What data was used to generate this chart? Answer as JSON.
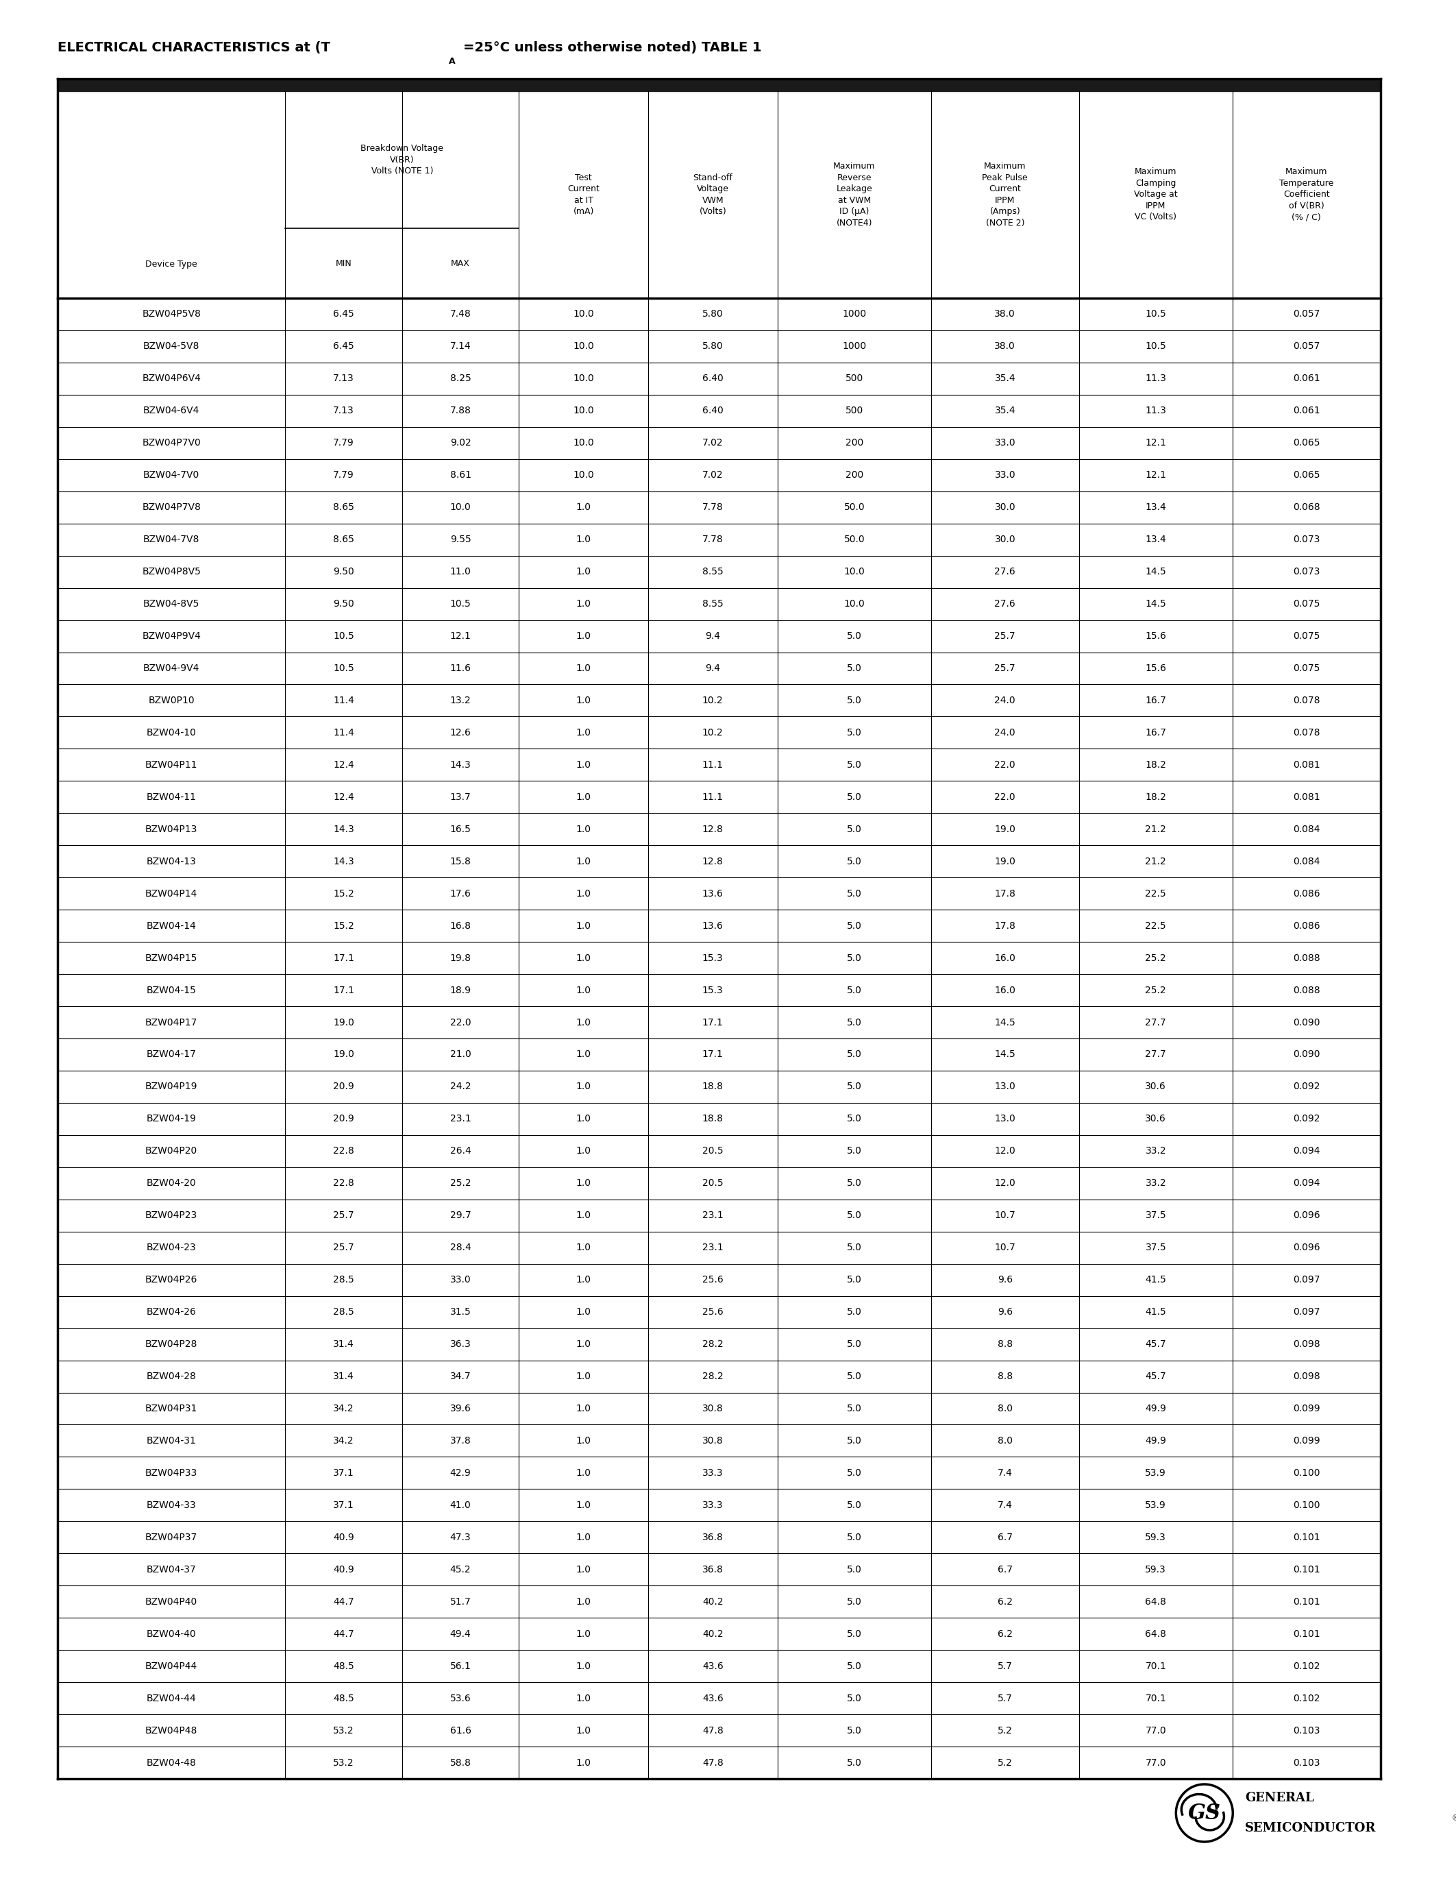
{
  "rows": [
    [
      "BZW04P5V8",
      "6.45",
      "7.48",
      "10.0",
      "5.80",
      "1000",
      "38.0",
      "10.5",
      "0.057"
    ],
    [
      "BZW04-5V8",
      "6.45",
      "7.14",
      "10.0",
      "5.80",
      "1000",
      "38.0",
      "10.5",
      "0.057"
    ],
    [
      "BZW04P6V4",
      "7.13",
      "8.25",
      "10.0",
      "6.40",
      "500",
      "35.4",
      "11.3",
      "0.061"
    ],
    [
      "BZW04-6V4",
      "7.13",
      "7.88",
      "10.0",
      "6.40",
      "500",
      "35.4",
      "11.3",
      "0.061"
    ],
    [
      "BZW04P7V0",
      "7.79",
      "9.02",
      "10.0",
      "7.02",
      "200",
      "33.0",
      "12.1",
      "0.065"
    ],
    [
      "BZW04-7V0",
      "7.79",
      "8.61",
      "10.0",
      "7.02",
      "200",
      "33.0",
      "12.1",
      "0.065"
    ],
    [
      "BZW04P7V8",
      "8.65",
      "10.0",
      "1.0",
      "7.78",
      "50.0",
      "30.0",
      "13.4",
      "0.068"
    ],
    [
      "BZW04-7V8",
      "8.65",
      "9.55",
      "1.0",
      "7.78",
      "50.0",
      "30.0",
      "13.4",
      "0.073"
    ],
    [
      "BZW04P8V5",
      "9.50",
      "11.0",
      "1.0",
      "8.55",
      "10.0",
      "27.6",
      "14.5",
      "0.073"
    ],
    [
      "BZW04-8V5",
      "9.50",
      "10.5",
      "1.0",
      "8.55",
      "10.0",
      "27.6",
      "14.5",
      "0.075"
    ],
    [
      "BZW04P9V4",
      "10.5",
      "12.1",
      "1.0",
      "9.4",
      "5.0",
      "25.7",
      "15.6",
      "0.075"
    ],
    [
      "BZW04-9V4",
      "10.5",
      "11.6",
      "1.0",
      "9.4",
      "5.0",
      "25.7",
      "15.6",
      "0.075"
    ],
    [
      "BZW0P10",
      "11.4",
      "13.2",
      "1.0",
      "10.2",
      "5.0",
      "24.0",
      "16.7",
      "0.078"
    ],
    [
      "BZW04-10",
      "11.4",
      "12.6",
      "1.0",
      "10.2",
      "5.0",
      "24.0",
      "16.7",
      "0.078"
    ],
    [
      "BZW04P11",
      "12.4",
      "14.3",
      "1.0",
      "11.1",
      "5.0",
      "22.0",
      "18.2",
      "0.081"
    ],
    [
      "BZW04-11",
      "12.4",
      "13.7",
      "1.0",
      "11.1",
      "5.0",
      "22.0",
      "18.2",
      "0.081"
    ],
    [
      "BZW04P13",
      "14.3",
      "16.5",
      "1.0",
      "12.8",
      "5.0",
      "19.0",
      "21.2",
      "0.084"
    ],
    [
      "BZW04-13",
      "14.3",
      "15.8",
      "1.0",
      "12.8",
      "5.0",
      "19.0",
      "21.2",
      "0.084"
    ],
    [
      "BZW04P14",
      "15.2",
      "17.6",
      "1.0",
      "13.6",
      "5.0",
      "17.8",
      "22.5",
      "0.086"
    ],
    [
      "BZW04-14",
      "15.2",
      "16.8",
      "1.0",
      "13.6",
      "5.0",
      "17.8",
      "22.5",
      "0.086"
    ],
    [
      "BZW04P15",
      "17.1",
      "19.8",
      "1.0",
      "15.3",
      "5.0",
      "16.0",
      "25.2",
      "0.088"
    ],
    [
      "BZW04-15",
      "17.1",
      "18.9",
      "1.0",
      "15.3",
      "5.0",
      "16.0",
      "25.2",
      "0.088"
    ],
    [
      "BZW04P17",
      "19.0",
      "22.0",
      "1.0",
      "17.1",
      "5.0",
      "14.5",
      "27.7",
      "0.090"
    ],
    [
      "BZW04-17",
      "19.0",
      "21.0",
      "1.0",
      "17.1",
      "5.0",
      "14.5",
      "27.7",
      "0.090"
    ],
    [
      "BZW04P19",
      "20.9",
      "24.2",
      "1.0",
      "18.8",
      "5.0",
      "13.0",
      "30.6",
      "0.092"
    ],
    [
      "BZW04-19",
      "20.9",
      "23.1",
      "1.0",
      "18.8",
      "5.0",
      "13.0",
      "30.6",
      "0.092"
    ],
    [
      "BZW04P20",
      "22.8",
      "26.4",
      "1.0",
      "20.5",
      "5.0",
      "12.0",
      "33.2",
      "0.094"
    ],
    [
      "BZW04-20",
      "22.8",
      "25.2",
      "1.0",
      "20.5",
      "5.0",
      "12.0",
      "33.2",
      "0.094"
    ],
    [
      "BZW04P23",
      "25.7",
      "29.7",
      "1.0",
      "23.1",
      "5.0",
      "10.7",
      "37.5",
      "0.096"
    ],
    [
      "BZW04-23",
      "25.7",
      "28.4",
      "1.0",
      "23.1",
      "5.0",
      "10.7",
      "37.5",
      "0.096"
    ],
    [
      "BZW04P26",
      "28.5",
      "33.0",
      "1.0",
      "25.6",
      "5.0",
      "9.6",
      "41.5",
      "0.097"
    ],
    [
      "BZW04-26",
      "28.5",
      "31.5",
      "1.0",
      "25.6",
      "5.0",
      "9.6",
      "41.5",
      "0.097"
    ],
    [
      "BZW04P28",
      "31.4",
      "36.3",
      "1.0",
      "28.2",
      "5.0",
      "8.8",
      "45.7",
      "0.098"
    ],
    [
      "BZW04-28",
      "31.4",
      "34.7",
      "1.0",
      "28.2",
      "5.0",
      "8.8",
      "45.7",
      "0.098"
    ],
    [
      "BZW04P31",
      "34.2",
      "39.6",
      "1.0",
      "30.8",
      "5.0",
      "8.0",
      "49.9",
      "0.099"
    ],
    [
      "BZW04-31",
      "34.2",
      "37.8",
      "1.0",
      "30.8",
      "5.0",
      "8.0",
      "49.9",
      "0.099"
    ],
    [
      "BZW04P33",
      "37.1",
      "42.9",
      "1.0",
      "33.3",
      "5.0",
      "7.4",
      "53.9",
      "0.100"
    ],
    [
      "BZW04-33",
      "37.1",
      "41.0",
      "1.0",
      "33.3",
      "5.0",
      "7.4",
      "53.9",
      "0.100"
    ],
    [
      "BZW04P37",
      "40.9",
      "47.3",
      "1.0",
      "36.8",
      "5.0",
      "6.7",
      "59.3",
      "0.101"
    ],
    [
      "BZW04-37",
      "40.9",
      "45.2",
      "1.0",
      "36.8",
      "5.0",
      "6.7",
      "59.3",
      "0.101"
    ],
    [
      "BZW04P40",
      "44.7",
      "51.7",
      "1.0",
      "40.2",
      "5.0",
      "6.2",
      "64.8",
      "0.101"
    ],
    [
      "BZW04-40",
      "44.7",
      "49.4",
      "1.0",
      "40.2",
      "5.0",
      "6.2",
      "64.8",
      "0.101"
    ],
    [
      "BZW04P44",
      "48.5",
      "56.1",
      "1.0",
      "43.6",
      "5.0",
      "5.7",
      "70.1",
      "0.102"
    ],
    [
      "BZW04-44",
      "48.5",
      "53.6",
      "1.0",
      "43.6",
      "5.0",
      "5.7",
      "70.1",
      "0.102"
    ],
    [
      "BZW04P48",
      "53.2",
      "61.6",
      "1.0",
      "47.8",
      "5.0",
      "5.2",
      "77.0",
      "0.103"
    ],
    [
      "BZW04-48",
      "53.2",
      "58.8",
      "1.0",
      "47.8",
      "5.0",
      "5.2",
      "77.0",
      "0.103"
    ]
  ],
  "bg_color": "#ffffff",
  "text_color": "#000000",
  "border_color": "#000000",
  "header_top_bar_color": "#1a1a1a",
  "thick_lw": 2.5,
  "thin_lw": 0.8,
  "title_font": 14,
  "header_font": 9,
  "data_font": 10,
  "logo_font": 13
}
